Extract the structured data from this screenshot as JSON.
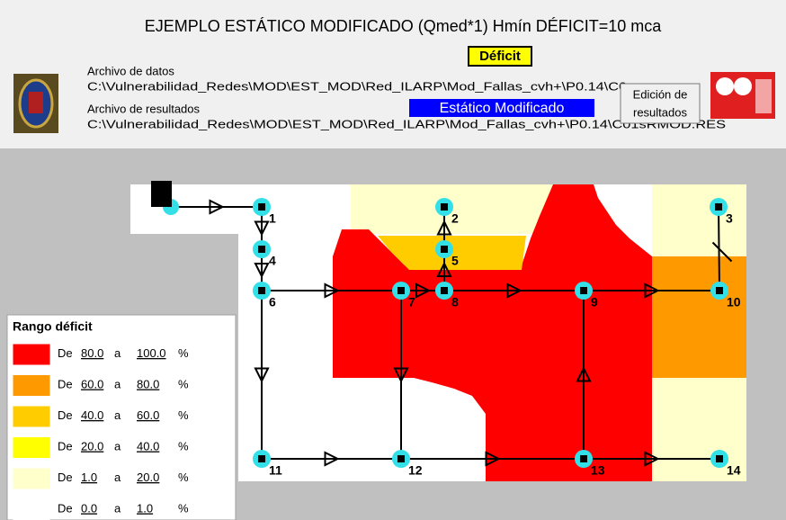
{
  "header": {
    "title": "EJEMPLO ESTÁTICO MODIFICADO (Qmed*1) Hmín DÉFICIT=10 mca",
    "status_badge": "Déficit",
    "data_file_label": "Archivo de datos",
    "data_file_path": "C:\\Vulnerabilidad_Redes\\MOD\\EST_MOD\\Red_ILARP\\Mod_Fallas_cvh+\\P0.14\\C0",
    "result_file_label": "Archivo de resultados",
    "result_file_path": "C:\\Vulnerabilidad_Redes\\MOD\\EST_MOD\\Red_ILARP\\Mod_Fallas_cvh+\\P0.14\\C01sRMOD.RES",
    "mode_badge": "Estático Modificado",
    "button_lines": [
      "Edición de",
      "resultados"
    ]
  },
  "legend": {
    "title": "Rango déficit",
    "items": [
      {
        "prefix": "De",
        "from": "80.0",
        "connector": "a",
        "to": "100.0",
        "unit": "%",
        "color": "#ff0000"
      },
      {
        "prefix": "De",
        "from": "60.0",
        "connector": "a",
        "to": "80.0",
        "unit": "%",
        "color": "#ff9900"
      },
      {
        "prefix": "De",
        "from": "40.0",
        "connector": "a",
        "to": "60.0",
        "unit": "%",
        "color": "#ffcc00"
      },
      {
        "prefix": "De",
        "from": "20.0",
        "connector": "a",
        "to": "40.0",
        "unit": "%",
        "color": "#ffff00"
      },
      {
        "prefix": "De",
        "from": "1.0",
        "connector": "a",
        "to": "20.0",
        "unit": "%",
        "color": "#ffffcc"
      },
      {
        "prefix": "De",
        "from": "0.0",
        "connector": "a",
        "to": "1.0",
        "unit": "%",
        "color": "#ffffff"
      }
    ]
  },
  "nodes": [
    {
      "label": "1"
    },
    {
      "label": "2"
    },
    {
      "label": "3"
    },
    {
      "label": "4"
    },
    {
      "label": "5"
    },
    {
      "label": "6"
    },
    {
      "label": "7"
    },
    {
      "label": "8"
    },
    {
      "label": "9"
    },
    {
      "label": "10"
    },
    {
      "label": "11"
    },
    {
      "label": "12"
    },
    {
      "label": "13"
    },
    {
      "label": "14"
    }
  ]
}
